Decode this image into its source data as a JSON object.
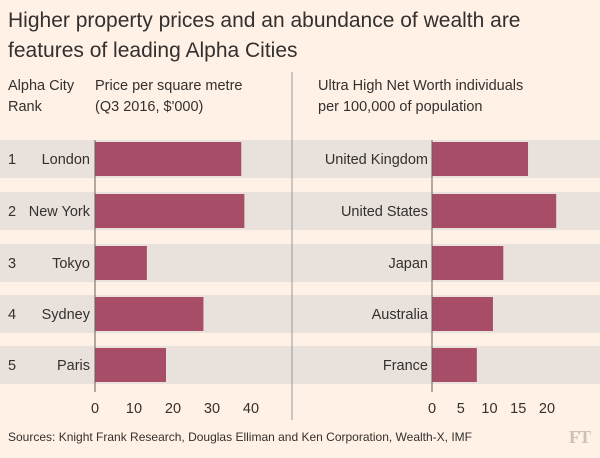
{
  "title": "Higher property prices and an abundance of wealth are features of leading Alpha Cities",
  "left_header_rank": "Alpha City\nRank",
  "left_header_metric": "Price per square metre\n(Q3 2016, $'000)",
  "right_header_metric": "Ultra High Net Worth individuals\nper 100,000 of population",
  "source": "Sources: Knight Frank Research, Douglas Elliman and Ken Corporation, Wealth-X, IMF",
  "logo": "FT",
  "colors": {
    "bar": "#a74d68",
    "band": "#e9e1db",
    "background": "#fff1e5",
    "divider": "#999999"
  },
  "chart_data": [
    {
      "type": "bar",
      "orientation": "horizontal",
      "ranks": [
        "1",
        "2",
        "3",
        "4",
        "5"
      ],
      "categories": [
        "London",
        "New York",
        "Tokyo",
        "Sydney",
        "Paris"
      ],
      "values": [
        37.5,
        38.3,
        13.3,
        27.8,
        18.2
      ],
      "xlabel": "Price per square metre (Q3 2016, $'000)",
      "xticks": [
        0,
        10,
        20,
        30,
        40
      ],
      "xlim": [
        0,
        40
      ]
    },
    {
      "type": "bar",
      "orientation": "horizontal",
      "categories": [
        "United Kingdom",
        "United States",
        "Japan",
        "Australia",
        "France"
      ],
      "values": [
        16.7,
        21.6,
        12.4,
        10.6,
        7.8
      ],
      "xlabel": "Ultra High Net Worth individuals per 100,000 of population",
      "xticks": [
        0,
        5,
        10,
        15,
        20
      ],
      "xlim": [
        0,
        20
      ]
    }
  ]
}
